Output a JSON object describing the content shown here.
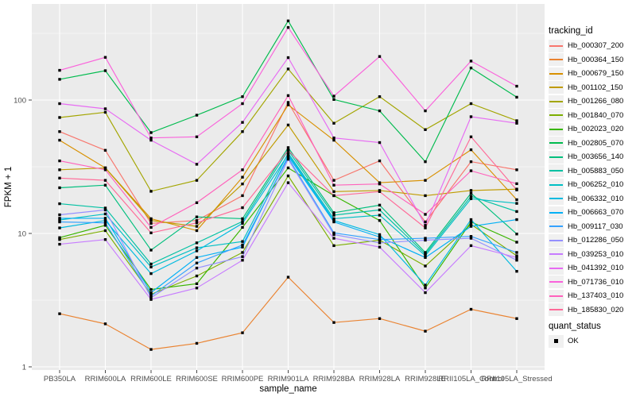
{
  "chart_data": {
    "type": "line",
    "title": "",
    "xlabel": "sample_name",
    "ylabel": "FPKM + 1",
    "x_categories": [
      "PB350LA",
      "RRIM600LA",
      "RRIM600LE",
      "RRIM600SE",
      "RRIM600PE",
      "RRIM901LA",
      "RRIM928BA",
      "RRIM928LA",
      "RRIM928LE",
      "RRII105LA_Control",
      "RRII105LA_Stressed"
    ],
    "y_scale": "log10",
    "y_ticks": [
      1,
      10,
      100
    ],
    "y_tick_labels": [
      "1",
      "10",
      "100"
    ],
    "y_minor_ticks": [
      3.162,
      31.62,
      316.2
    ],
    "ylim": [
      0.91,
      520
    ],
    "grid": "on",
    "legend_position": "right",
    "legend_titles": [
      "tracking_id",
      "quant_status"
    ],
    "quant_status_label": "OK",
    "marker": "black-square",
    "style": {
      "panel_bg": "#EBEBEB",
      "grid_color": "#FFFFFF",
      "tick_text_color": "#4D4D4D",
      "axis_title_color": "#000000",
      "key_bg": "#F0F0F0",
      "marker_color": "#000000"
    },
    "series": [
      {
        "name": "Hb_000307_200",
        "color": "#F8766D",
        "values": [
          58,
          42,
          11.9,
          12.5,
          19.2,
          96,
          25,
          35,
          12.2,
          34.5,
          30
        ]
      },
      {
        "name": "Hb_000364_150",
        "color": "#EA8331",
        "values": [
          2.5,
          2.1,
          1.35,
          1.5,
          1.8,
          4.7,
          2.15,
          2.3,
          1.85,
          2.7,
          2.3
        ]
      },
      {
        "name": "Hb_000679_150",
        "color": "#D89000",
        "values": [
          50,
          31,
          12.9,
          10.5,
          26.4,
          92,
          50,
          24,
          25,
          42.4,
          17.9
        ]
      },
      {
        "name": "Hb_001102_150",
        "color": "#C09B00",
        "values": [
          30,
          31,
          12.5,
          11.3,
          23.5,
          65,
          20.6,
          21,
          19.2,
          21,
          21.5
        ]
      },
      {
        "name": "Hb_001266_080",
        "color": "#A3A500",
        "values": [
          74,
          81,
          20.7,
          25,
          58,
          171,
          67,
          106,
          60,
          94,
          70
        ]
      },
      {
        "name": "Hb_001840_070",
        "color": "#7CAE00",
        "values": [
          9.0,
          10.5,
          3.5,
          4.8,
          7.2,
          27,
          8.1,
          8.9,
          5.7,
          11.7,
          6.8
        ]
      },
      {
        "name": "Hb_002023_020",
        "color": "#39B600",
        "values": [
          9.3,
          11.5,
          3.8,
          4.2,
          11.1,
          31,
          19.2,
          12.5,
          3.9,
          12.2,
          8.6
        ]
      },
      {
        "name": "Hb_002805_070",
        "color": "#00BB4E",
        "values": [
          143,
          166,
          57,
          77,
          106,
          392,
          101,
          83,
          34.5,
          174,
          105
        ]
      },
      {
        "name": "Hb_003656_140",
        "color": "#00BF7D",
        "values": [
          22,
          23,
          7.5,
          13.3,
          12.9,
          44,
          14.3,
          16.3,
          7.2,
          20,
          9.9
        ]
      },
      {
        "name": "Hb_005883_050",
        "color": "#00C1A3",
        "values": [
          16.7,
          15.5,
          5.9,
          8.5,
          12.3,
          42,
          13.7,
          15,
          7.0,
          19,
          14.6
        ]
      },
      {
        "name": "Hb_006252_010",
        "color": "#00BFC4",
        "values": [
          12.6,
          14,
          5.6,
          7.8,
          8.7,
          40,
          12.9,
          13.7,
          6.8,
          18.2,
          16.8
        ]
      },
      {
        "name": "Hb_006332_010",
        "color": "#00BAE0",
        "values": [
          11,
          12.5,
          5.0,
          7.4,
          11.9,
          39,
          12.5,
          9.8,
          4.1,
          12.7,
          5.2
        ]
      },
      {
        "name": "Hb_006663_070",
        "color": "#00B0F6",
        "values": [
          13.0,
          13,
          3.6,
          6.6,
          7.9,
          38,
          12.2,
          9.4,
          6.6,
          11.3,
          12.7
        ]
      },
      {
        "name": "Hb_009117_030",
        "color": "#35A2FF",
        "values": [
          12.2,
          12,
          3.4,
          6.0,
          8.2,
          37,
          10.1,
          9.0,
          9.2,
          9.5,
          7.2
        ]
      },
      {
        "name": "Hb_012286_050",
        "color": "#9590FF",
        "values": [
          13.8,
          15,
          3.3,
          5.5,
          6.7,
          36,
          9.8,
          8.5,
          8.9,
          9.2,
          6.3
        ]
      },
      {
        "name": "Hb_039253_010",
        "color": "#C77CFF",
        "values": [
          8.3,
          9,
          3.2,
          3.9,
          6.3,
          24,
          9.2,
          7.9,
          3.6,
          8.1,
          6.6
        ]
      },
      {
        "name": "Hb_041392_010",
        "color": "#E76BF3",
        "values": [
          94,
          86,
          50,
          33,
          68,
          208,
          52,
          48,
          11.5,
          75,
          67
        ]
      },
      {
        "name": "Hb_071736_010",
        "color": "#FA62DB",
        "values": [
          167,
          209,
          52,
          53,
          94,
          350,
          107,
          212,
          83,
          196,
          127
        ]
      },
      {
        "name": "Hb_137403_010",
        "color": "#FF62BC",
        "values": [
          35,
          30,
          11.1,
          17,
          30,
          108,
          23,
          23.5,
          13.9,
          29.5,
          23.6
        ]
      },
      {
        "name": "Hb_185830_020",
        "color": "#FF6A98",
        "values": [
          26,
          25,
          10.1,
          12,
          15.6,
          42,
          19.2,
          20.6,
          11.0,
          53,
          21.2
        ]
      }
    ]
  }
}
